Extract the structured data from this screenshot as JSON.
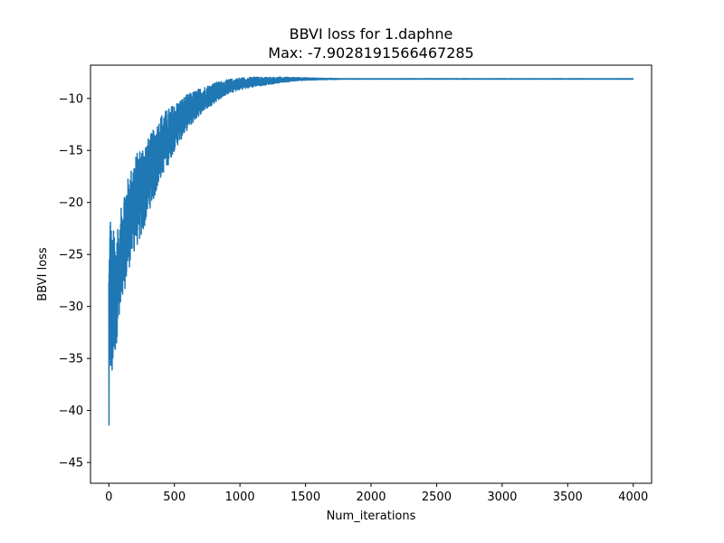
{
  "chart_data": {
    "type": "line",
    "title": "BBVI loss for 1.daphne",
    "subtitle": "Max: -7.9028191566467285",
    "xlabel": "Num_iterations",
    "ylabel": "BBVI loss",
    "xlim": [
      -140,
      4140
    ],
    "ylim": [
      -47,
      -6.8
    ],
    "xticks": [
      0,
      500,
      1000,
      1500,
      2000,
      2500,
      3000,
      3500,
      4000
    ],
    "yticks": [
      -45,
      -40,
      -35,
      -30,
      -25,
      -20,
      -15,
      -10
    ],
    "xtick_labels": [
      "0",
      "500",
      "1000",
      "1500",
      "2000",
      "2500",
      "3000",
      "3500",
      "4000"
    ],
    "ytick_labels": [
      "−45",
      "−40",
      "−35",
      "−30",
      "−25",
      "−20",
      "−15",
      "−10"
    ],
    "grid": false,
    "legend": "none",
    "colors": {
      "series": "#1f77b4",
      "axes": "#000000",
      "background": "#ffffff"
    },
    "series": [
      {
        "x": [
          0,
          5,
          10,
          15,
          20,
          25,
          30,
          40,
          50,
          60,
          70,
          80,
          100,
          120,
          150,
          200,
          250,
          300,
          350,
          400,
          450,
          500,
          600,
          700,
          800,
          900,
          1000,
          1100,
          1200,
          1300,
          1400,
          1500,
          1600,
          1800,
          2000,
          2500,
          3000,
          3500,
          4000
        ],
        "upper": [
          -24.5,
          -22.5,
          -20.2,
          -20.5,
          -22.8,
          -23.0,
          -23.5,
          -22.0,
          -24.0,
          -22.5,
          -21.5,
          -23.0,
          -19.5,
          -18.5,
          -17.5,
          -15.5,
          -14.5,
          -13.8,
          -12.8,
          -11.5,
          -11.0,
          -10.5,
          -9.6,
          -9.0,
          -8.5,
          -8.2,
          -8.0,
          -7.95,
          -7.95,
          -7.95,
          -7.98,
          -8.0,
          -8.05,
          -8.1,
          -8.1,
          -8.1,
          -8.1,
          -8.1,
          -8.1
        ],
        "lower": [
          -45.2,
          -40.0,
          -38.0,
          -36.5,
          -37.5,
          -38.7,
          -36.0,
          -35.0,
          -34.5,
          -33.5,
          -31.5,
          -32.0,
          -30.5,
          -28.5,
          -26.5,
          -24.5,
          -23.5,
          -21.0,
          -19.5,
          -17.5,
          -16.5,
          -15.0,
          -13.0,
          -11.5,
          -10.5,
          -9.6,
          -9.2,
          -8.9,
          -8.7,
          -8.5,
          -8.35,
          -8.25,
          -8.2,
          -8.15,
          -8.15,
          -8.15,
          -8.15,
          -8.15,
          -8.15
        ]
      }
    ]
  }
}
